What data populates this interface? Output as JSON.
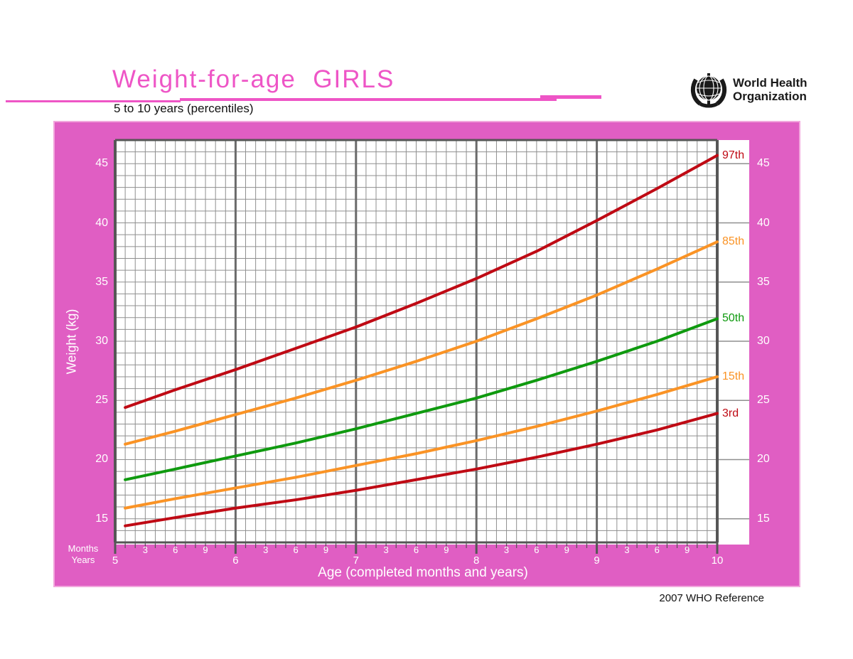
{
  "header": {
    "title": "Weight-for-age  GIRLS",
    "subtitle": "5 to 10 years (percentiles)",
    "logo": {
      "line1": "World Health",
      "line2": "Organization"
    }
  },
  "footer": {
    "reference": "2007 WHO Reference"
  },
  "axes": {
    "x_title": "Age (completed months and years)",
    "months_caption": "Months",
    "years_caption": "Years",
    "y_title": "Weight (kg)"
  },
  "colors": {
    "panel_pink": "#e05ec3",
    "panel_edge_pink": "#f2a7dd",
    "title_pink": "#ee55c6",
    "grid_minor": "#8f8f8f",
    "grid_major": "#6a6a6a",
    "axis_dark": "#565656",
    "curve_red": "#bf0a14",
    "curve_orange": "#fa9325",
    "curve_green": "#0f9a0f"
  },
  "chart_data": {
    "type": "line",
    "title": "Weight-for-age GIRLS, 5 to 10 years (percentiles)",
    "xlabel": "Age (completed months and years)",
    "ylabel": "Weight (kg)",
    "x_unit": "months",
    "xlim": [
      60,
      120
    ],
    "ylim": [
      13,
      47
    ],
    "grid": true,
    "legend_position": "right-end-labels",
    "y_ticks": [
      15,
      20,
      25,
      30,
      35,
      40,
      45
    ],
    "x_year_ticks": [
      "5",
      "6",
      "7",
      "8",
      "9",
      "10"
    ],
    "month_tick_labels": [
      "3",
      "6",
      "9"
    ],
    "x": [
      61,
      66,
      72,
      78,
      84,
      90,
      96,
      102,
      108,
      114,
      120
    ],
    "series": [
      {
        "name": "97th",
        "color": "#bf0a14",
        "values": [
          24.4,
          25.9,
          27.6,
          29.4,
          31.2,
          33.2,
          35.3,
          37.6,
          40.2,
          42.9,
          45.7
        ]
      },
      {
        "name": "85th",
        "color": "#fa9325",
        "values": [
          21.3,
          22.4,
          23.8,
          25.2,
          26.7,
          28.3,
          30.0,
          31.9,
          33.9,
          36.1,
          38.4
        ]
      },
      {
        "name": "50th",
        "color": "#0f9a0f",
        "values": [
          18.3,
          19.2,
          20.3,
          21.4,
          22.6,
          23.9,
          25.2,
          26.7,
          28.3,
          30.0,
          31.9
        ]
      },
      {
        "name": "15th",
        "color": "#fa9325",
        "values": [
          15.9,
          16.7,
          17.6,
          18.5,
          19.5,
          20.5,
          21.6,
          22.8,
          24.1,
          25.5,
          27.0
        ]
      },
      {
        "name": "3rd",
        "color": "#bf0a14",
        "values": [
          14.4,
          15.1,
          15.9,
          16.6,
          17.4,
          18.3,
          19.2,
          20.2,
          21.3,
          22.5,
          23.9
        ]
      }
    ]
  }
}
